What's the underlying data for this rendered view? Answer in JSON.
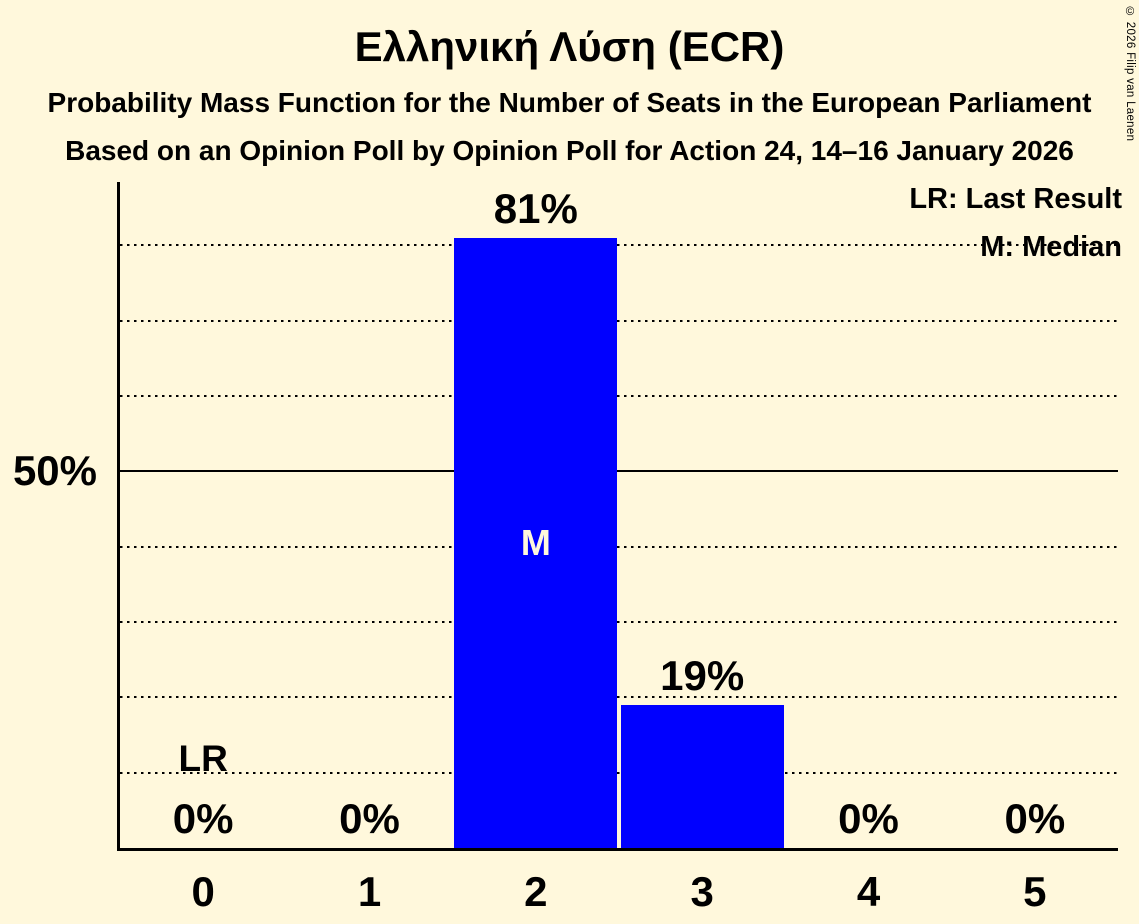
{
  "chart_data": {
    "type": "bar",
    "title": "Ελληνική Λύση (ECR)",
    "subtitle": "Probability Mass Function for the Number of Seats in the European Parliament",
    "subsubtitle": "Based on an Opinion Poll by Opinion Poll for Action 24, 14–16 January 2026",
    "xlabel": "",
    "ylabel": "",
    "categories": [
      "0",
      "1",
      "2",
      "3",
      "4",
      "5"
    ],
    "values": [
      0,
      0,
      81,
      19,
      0,
      0
    ],
    "value_labels": [
      "0%",
      "0%",
      "81%",
      "19%",
      "0%",
      "0%"
    ],
    "unit": "percent",
    "ylim": [
      0,
      88.4
    ],
    "gridlines": {
      "percents": [
        10,
        20,
        30,
        40,
        50,
        60,
        70,
        80
      ],
      "solid_percent": 50,
      "style": "dotted"
    },
    "y_axis_label": {
      "percent": 50,
      "text": "50%"
    },
    "annotations": [
      {
        "text": "LR",
        "category": 0,
        "meaning": "last result"
      },
      {
        "text": "M",
        "category": 2,
        "meaning": "median"
      }
    ],
    "legend": {
      "lr": "LR: Last Result",
      "m": "M: Median"
    },
    "legend_position": "top-right"
  },
  "copyright": "© 2026 Filip van Laenen",
  "colors": {
    "background": "#fff8dc",
    "bar": "#0000ff",
    "text": "#000000",
    "median_text": "#fff8dc"
  }
}
